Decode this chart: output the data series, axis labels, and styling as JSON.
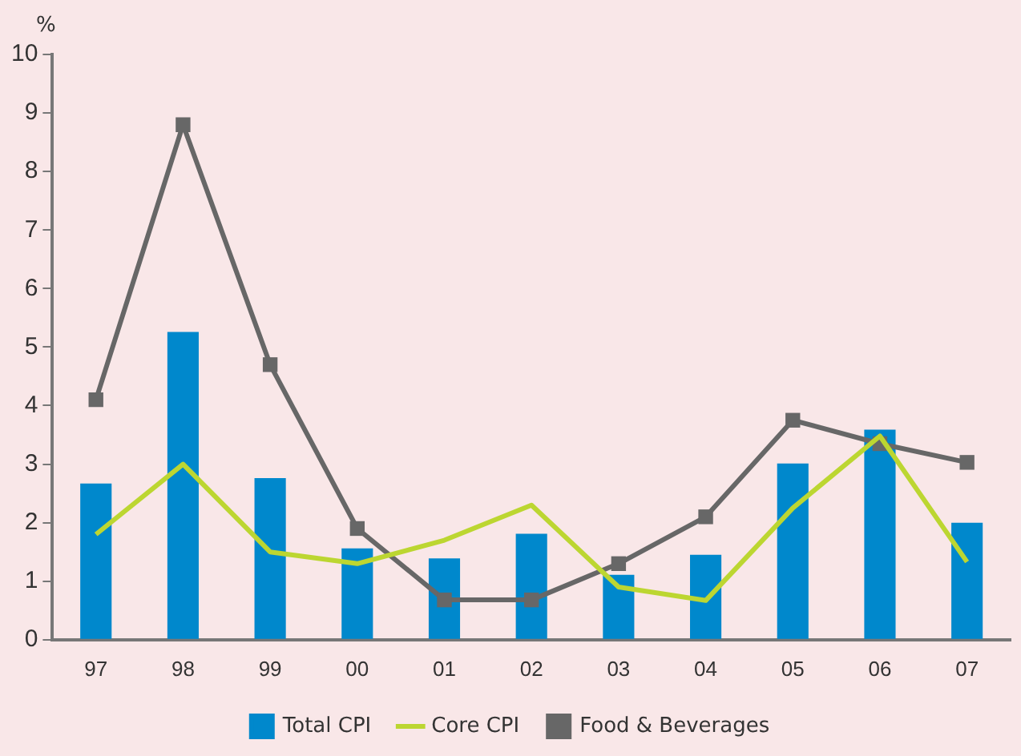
{
  "chart_data": {
    "type": "bar",
    "ylabel": "%",
    "categories": [
      "97",
      "98",
      "99",
      "00",
      "01",
      "02",
      "03",
      "04",
      "05",
      "06",
      "07"
    ],
    "series": [
      {
        "name": "Total CPI",
        "color": "#0088cc",
        "values": [
          2.67,
          5.26,
          2.76,
          1.56,
          1.39,
          1.81,
          1.11,
          1.45,
          3.01,
          3.59,
          2.0
        ]
      },
      {
        "name": "Core CPI",
        "type": "line",
        "color": "#bcd631",
        "marker": "none",
        "values": [
          1.8,
          3.0,
          1.5,
          1.3,
          1.7,
          2.3,
          0.9,
          0.67,
          2.25,
          3.48,
          1.33
        ]
      },
      {
        "name": "Food & Beverages",
        "type": "line",
        "color": "#676767",
        "marker": "square",
        "values": [
          4.1,
          8.8,
          4.7,
          1.9,
          0.68,
          0.68,
          1.3,
          2.1,
          3.75,
          3.35,
          3.03
        ]
      }
    ],
    "ylim": [
      0,
      10
    ],
    "yticks": [
      0,
      1,
      2,
      3,
      4,
      5,
      6,
      7,
      8,
      9,
      10
    ],
    "grid": false,
    "legend": "bottom"
  }
}
